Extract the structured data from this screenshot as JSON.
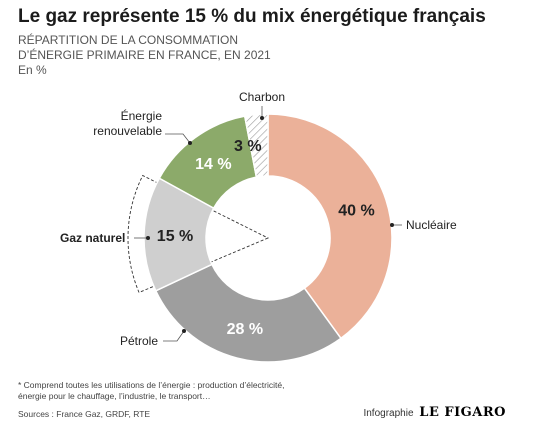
{
  "header": {
    "title": "Le gaz représente 15 % du mix énergétique français",
    "subtitle_line1": "RÉPARTITION DE LA CONSOMMATION",
    "subtitle_line2": "D’ÉNERGIE PRIMAIRE EN FRANCE, EN 2021",
    "unit": "En %"
  },
  "chart_data": {
    "type": "pie",
    "title": "Le gaz représente 15 % du mix énergétique français",
    "donut": true,
    "slices": [
      {
        "name": "Nucléaire",
        "value": 40,
        "label": "40 %",
        "color": "#ebb199",
        "label_color": "#222222"
      },
      {
        "name": "Pétrole",
        "value": 28,
        "label": "28 %",
        "color": "#9e9e9e",
        "label_color": "#ffffff"
      },
      {
        "name": "Gaz naturel",
        "value": 15,
        "label": "15 %",
        "color": "#cfcfcf",
        "label_color": "#222222",
        "highlight": true
      },
      {
        "name": "Énergie renouvelable",
        "value": 14,
        "label": "14 %",
        "color": "#8caa6a",
        "label_color": "#ffffff"
      },
      {
        "name": "Charbon",
        "value": 3,
        "label": "3 %",
        "color": "#ffffff",
        "label_color": "#222222",
        "hatched": true
      }
    ],
    "category_labels": {
      "nucleaire": "Nucléaire",
      "petrole": "Pétrole",
      "gaz": "Gaz naturel",
      "renouvelable_line1": "Énergie",
      "renouvelable_line2": "renouvelable",
      "charbon": "Charbon"
    }
  },
  "footer": {
    "footnote_line1": "* Comprend toutes les utilisations de l’énergie : production d’électricité,",
    "footnote_line2": "énergie pour le chauffage, l’industrie, le transport…",
    "sources": "Sources : France Gaz, GRDF, RTE",
    "credit_label": "Infographie",
    "credit_brand": "LE FIGARO"
  }
}
